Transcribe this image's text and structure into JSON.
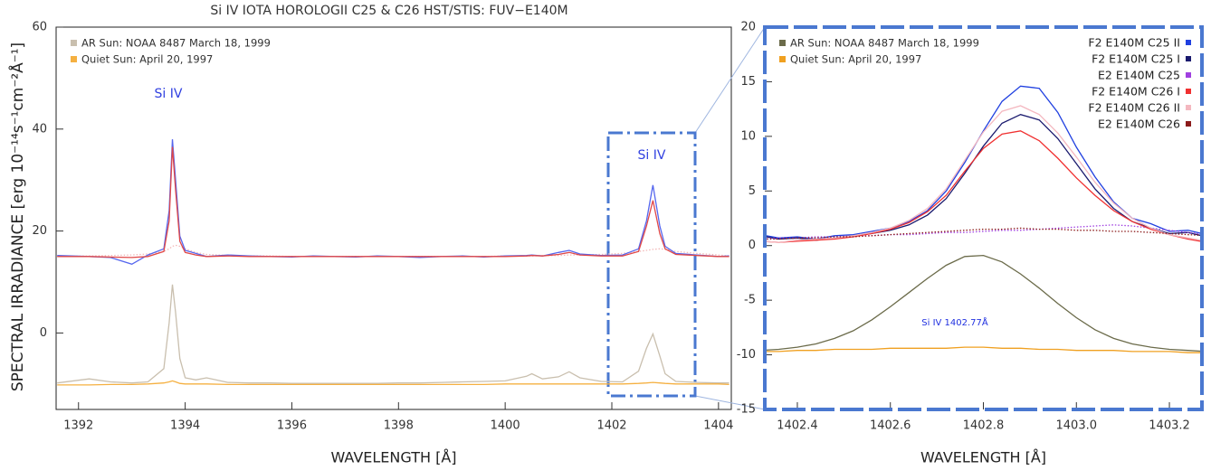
{
  "chart_data": [
    {
      "type": "line",
      "title": "Si IV IOTA HOROLOGII C25 & C26 HST/STIS: FUV−E140M",
      "x_label": "WAVELENGTH [Å]",
      "y_label": "SPECTRAL IRRADIANCE [erg 10⁻¹⁴s⁻¹cm⁻²Å⁻¹]",
      "annotations": [
        "Si IV",
        "Si IV"
      ],
      "xlim": [
        1391.58,
        1404.24
      ],
      "xticks": [
        1392,
        1394,
        1396,
        1398,
        1400,
        1402,
        1404
      ],
      "ylim": [
        -15,
        60
      ],
      "yticks": [
        0,
        20,
        40,
        60
      ],
      "x": [
        1391.6,
        1392.2,
        1392.6,
        1393.0,
        1393.3,
        1393.6,
        1393.7,
        1393.76,
        1393.82,
        1393.9,
        1394.0,
        1394.2,
        1394.4,
        1394.8,
        1395.2,
        1395.6,
        1396.0,
        1396.4,
        1396.8,
        1397.2,
        1397.6,
        1398.0,
        1398.4,
        1398.8,
        1399.2,
        1399.6,
        1400.0,
        1400.4,
        1400.5,
        1400.7,
        1401.0,
        1401.2,
        1401.4,
        1401.8,
        1402.2,
        1402.5,
        1402.65,
        1402.77,
        1402.9,
        1403.0,
        1403.2,
        1403.6,
        1404.0,
        1404.2
      ],
      "series": [
        {
          "color": "#f2b8b8",
          "dash": "dotted",
          "values": [
            15.0,
            15.1,
            15.2,
            15.3,
            15.5,
            16.0,
            16.5,
            17.0,
            17.2,
            17.0,
            16.5,
            15.8,
            15.4,
            15.2,
            15.1,
            15.1,
            15.0,
            15.0,
            15.0,
            15.0,
            15.0,
            15.0,
            15.0,
            15.0,
            15.0,
            15.0,
            15.1,
            15.1,
            15.1,
            15.2,
            15.2,
            15.3,
            15.3,
            15.4,
            15.6,
            16.0,
            16.2,
            16.4,
            16.5,
            16.4,
            16.0,
            15.6,
            15.3,
            15.1
          ]
        },
        {
          "color": "#5566ee",
          "values": [
            15.2,
            15.0,
            14.8,
            13.5,
            15.3,
            16.5,
            24,
            38,
            30,
            19,
            16.2,
            15.6,
            15.0,
            15.3,
            15.1,
            15.0,
            14.9,
            15.1,
            15.0,
            14.9,
            15.1,
            15.0,
            14.8,
            15.0,
            15.1,
            14.9,
            15.1,
            15.2,
            15.3,
            15.1,
            15.8,
            16.2,
            15.5,
            15.2,
            15.3,
            16.5,
            22,
            29,
            21,
            17,
            15.6,
            15.3,
            15.0,
            15.1
          ]
        },
        {
          "color": "#e04848",
          "values": [
            15.0,
            15.0,
            14.9,
            14.8,
            15.0,
            16.0,
            22,
            36.5,
            28,
            18,
            15.8,
            15.3,
            15.0,
            15.1,
            15.0,
            15.0,
            15.0,
            15.0,
            15.0,
            15.0,
            15.0,
            15.0,
            15.0,
            15.0,
            15.0,
            15.0,
            15.0,
            15.1,
            15.2,
            15.1,
            15.4,
            15.8,
            15.3,
            15.1,
            15.1,
            16.0,
            21,
            26,
            19.5,
            16.5,
            15.4,
            15.2,
            15.0,
            15.0
          ]
        },
        {
          "name": "AR Sun: NOAA 8487 March 18, 1999",
          "color": "#c9bfae",
          "values": [
            -9.8,
            -9.0,
            -9.6,
            -9.8,
            -9.6,
            -7.0,
            2.0,
            9.5,
            4.0,
            -5.0,
            -8.8,
            -9.2,
            -8.8,
            -9.7,
            -9.8,
            -9.8,
            -9.9,
            -9.9,
            -9.9,
            -9.9,
            -9.9,
            -9.8,
            -9.8,
            -9.7,
            -9.6,
            -9.5,
            -9.4,
            -8.5,
            -8.0,
            -9.0,
            -8.6,
            -7.6,
            -8.8,
            -9.5,
            -9.6,
            -7.5,
            -3.0,
            -0.2,
            -4.5,
            -8.0,
            -9.5,
            -9.7,
            -9.8,
            -9.8
          ]
        },
        {
          "name": "Quiet Sun: April 20, 1997",
          "color": "#f5b041",
          "values": [
            -10.2,
            -10.2,
            -10.1,
            -10.1,
            -10.0,
            -9.8,
            -9.6,
            -9.4,
            -9.6,
            -9.9,
            -10.0,
            -10.0,
            -10.0,
            -10.1,
            -10.1,
            -10.1,
            -10.1,
            -10.1,
            -10.1,
            -10.1,
            -10.1,
            -10.1,
            -10.1,
            -10.1,
            -10.1,
            -10.1,
            -10.0,
            -10.0,
            -10.0,
            -10.0,
            -10.0,
            -10.0,
            -10.0,
            -10.0,
            -10.0,
            -9.9,
            -9.8,
            -9.7,
            -9.8,
            -9.9,
            -10.0,
            -10.0,
            -10.0,
            -10.1
          ]
        }
      ]
    },
    {
      "type": "line",
      "x_label": "WAVELENGTH [Å]",
      "annotations": [
        "Si IV 1402.77Å"
      ],
      "xlim": [
        1402.33,
        1403.27
      ],
      "xticks": [
        1402.4,
        1402.6,
        1402.8,
        {
          "value": 1403,
          "label": "1403.0"
        },
        1403.2
      ],
      "ylim": [
        -15,
        20
      ],
      "yticks": [
        -15,
        -10,
        -5,
        0,
        5,
        10,
        15,
        20
      ],
      "x": [
        1402.28,
        1402.32,
        1402.36,
        1402.4,
        1402.44,
        1402.48,
        1402.52,
        1402.56,
        1402.6,
        1402.64,
        1402.68,
        1402.72,
        1402.76,
        1402.8,
        1402.84,
        1402.88,
        1402.92,
        1402.96,
        1403.0,
        1403.04,
        1403.08,
        1403.12,
        1403.16,
        1403.2,
        1403.24,
        1403.28,
        1403.32
      ],
      "series": [
        {
          "name": "AR Sun: NOAA 8487 March 18, 1999",
          "color": "#6b6b4a",
          "values": [
            -9.7,
            -9.6,
            -9.5,
            -9.3,
            -9.0,
            -8.5,
            -7.8,
            -6.8,
            -5.6,
            -4.3,
            -3.0,
            -1.8,
            -1.0,
            -0.9,
            -1.5,
            -2.6,
            -3.9,
            -5.3,
            -6.6,
            -7.7,
            -8.5,
            -9.0,
            -9.3,
            -9.5,
            -9.6,
            -9.7,
            -9.7
          ]
        },
        {
          "name": "Quiet Sun: April 20, 1997",
          "color": "#f0a020",
          "values": [
            -9.8,
            -9.7,
            -9.7,
            -9.6,
            -9.6,
            -9.5,
            -9.5,
            -9.5,
            -9.4,
            -9.4,
            -9.4,
            -9.4,
            -9.3,
            -9.3,
            -9.4,
            -9.4,
            -9.5,
            -9.5,
            -9.6,
            -9.6,
            -9.6,
            -9.7,
            -9.7,
            -9.7,
            -9.8,
            -9.8,
            -9.8
          ]
        },
        {
          "name": "F2 E140M C25 II",
          "color": "#2040e0",
          "values": [
            0.9,
            1.0,
            0.7,
            0.8,
            0.6,
            0.9,
            1.0,
            1.3,
            1.6,
            2.2,
            3.2,
            5.0,
            7.6,
            10.5,
            13.2,
            14.6,
            14.4,
            12.2,
            9.0,
            6.3,
            4.0,
            2.5,
            2.0,
            1.3,
            1.4,
            1.0,
            0.6
          ]
        },
        {
          "name": "F2 E140M C25 I",
          "color": "#1a1a6e",
          "values": [
            0.8,
            0.9,
            0.6,
            0.7,
            0.5,
            0.7,
            0.9,
            1.1,
            1.4,
            1.9,
            2.8,
            4.3,
            6.6,
            9.1,
            11.2,
            12.0,
            11.5,
            9.8,
            7.5,
            5.2,
            3.4,
            2.2,
            1.6,
            1.1,
            1.2,
            0.8,
            0.5
          ]
        },
        {
          "name": "E2 E140M C25",
          "color": "#a040e0",
          "dash": "dotted",
          "values": [
            0.6,
            0.6,
            0.7,
            0.7,
            0.8,
            0.8,
            0.9,
            0.9,
            1.0,
            1.0,
            1.1,
            1.2,
            1.2,
            1.3,
            1.4,
            1.4,
            1.5,
            1.6,
            1.7,
            1.8,
            1.9,
            1.8,
            1.6,
            1.4,
            1.2,
            1.0,
            0.8
          ]
        },
        {
          "name": "F2 E140M C26 I",
          "color": "#f03030",
          "values": [
            0.2,
            0.4,
            0.3,
            0.4,
            0.5,
            0.6,
            0.8,
            1.1,
            1.5,
            2.1,
            3.1,
            4.6,
            6.8,
            8.9,
            10.2,
            10.5,
            9.6,
            8.0,
            6.2,
            4.6,
            3.2,
            2.2,
            1.5,
            1.0,
            0.6,
            0.3,
            -0.2
          ]
        },
        {
          "name": "F2 E140M C26 II",
          "color": "#f4b8c0",
          "values": [
            0.5,
            0.4,
            0.3,
            0.5,
            0.6,
            0.7,
            0.9,
            1.2,
            1.6,
            2.3,
            3.4,
            5.2,
            7.8,
            10.4,
            12.3,
            12.8,
            12.0,
            10.3,
            8.1,
            5.8,
            3.9,
            2.5,
            1.6,
            1.0,
            0.7,
            0.4,
            0.1
          ]
        },
        {
          "name": "E2 E140M C26",
          "color": "#8b1a1a",
          "dash": "dotted",
          "values": [
            0.5,
            0.6,
            0.6,
            0.7,
            0.7,
            0.8,
            0.8,
            0.9,
            1.0,
            1.1,
            1.2,
            1.3,
            1.4,
            1.5,
            1.5,
            1.6,
            1.5,
            1.5,
            1.4,
            1.4,
            1.3,
            1.3,
            1.2,
            1.1,
            1.0,
            0.9,
            0.8
          ]
        }
      ]
    }
  ]
}
